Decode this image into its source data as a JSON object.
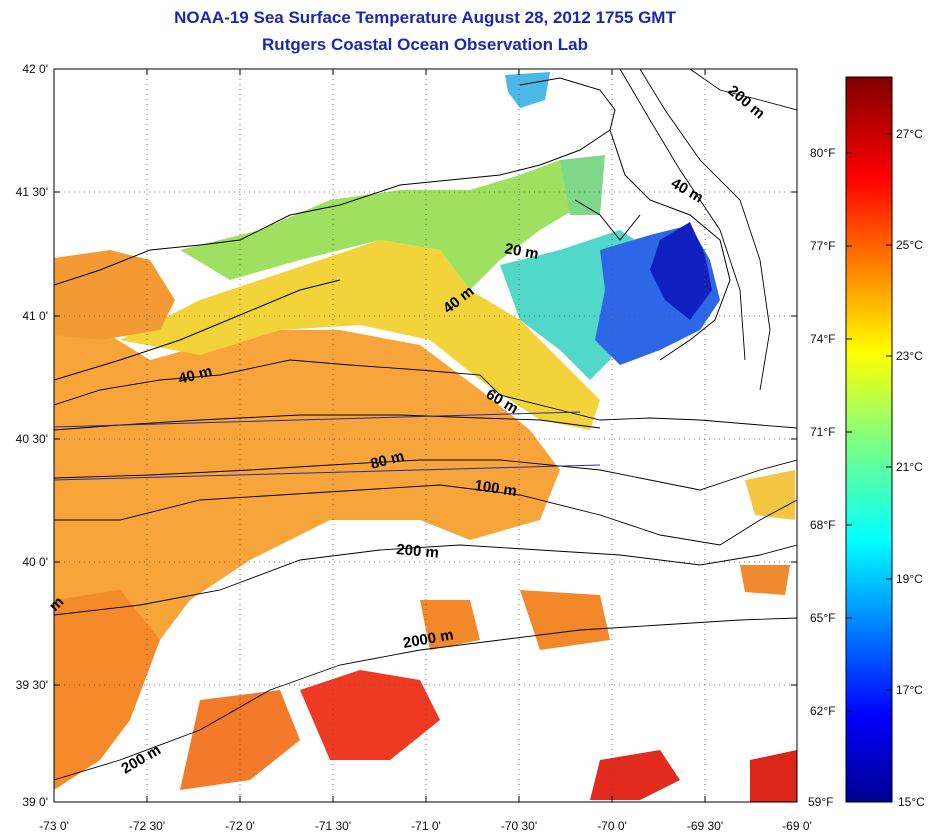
{
  "title": "NOAA-19 Sea Surface Temperature August 28, 2012 1755 GMT",
  "subtitle": "Rutgers Coastal Ocean Observation Lab",
  "lat_labels": [
    "42 0'",
    "41 30'",
    "41 0'",
    "40 30'",
    "40 0'",
    "39 30'",
    "39 0'"
  ],
  "lon_labels": [
    "-73 0'",
    "-72 30'",
    "-72 0'",
    "-71 30'",
    "-71 0'",
    "-70 30'",
    "-70 0'",
    "-69 30'",
    "-69 0'"
  ],
  "depth_labels": [
    "200 m",
    "40 m",
    "20 m",
    "40 m",
    "40 m",
    "60 m",
    "80 m",
    "100 m",
    "200 m",
    "2000 m",
    "200 m",
    "m"
  ],
  "colorbar": {
    "fahrenheit_labels": [
      "80°F",
      "77°F",
      "74°F",
      "71°F",
      "68°F",
      "65°F",
      "62°F",
      "59°F"
    ],
    "celsius_labels": [
      "27°C",
      "25°C",
      "23°C",
      "21°C",
      "19°C",
      "17°C",
      "15°C"
    ],
    "range_c": [
      15,
      28.3
    ]
  }
}
